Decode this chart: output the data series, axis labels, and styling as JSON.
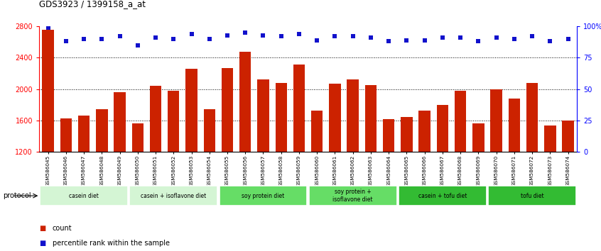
{
  "title": "GDS3923 / 1399158_a_at",
  "samples": [
    "GSM586045",
    "GSM586046",
    "GSM586047",
    "GSM586048",
    "GSM586049",
    "GSM586050",
    "GSM586051",
    "GSM586052",
    "GSM586053",
    "GSM586054",
    "GSM586055",
    "GSM586056",
    "GSM586057",
    "GSM586058",
    "GSM586059",
    "GSM586060",
    "GSM586061",
    "GSM586062",
    "GSM586063",
    "GSM586064",
    "GSM586065",
    "GSM586066",
    "GSM586067",
    "GSM586068",
    "GSM586069",
    "GSM586070",
    "GSM586071",
    "GSM586072",
    "GSM586073",
    "GSM586074"
  ],
  "counts": [
    2760,
    1630,
    1660,
    1740,
    1960,
    1560,
    2040,
    1980,
    2260,
    1740,
    2270,
    2480,
    2120,
    2080,
    2310,
    1730,
    2070,
    2120,
    2050,
    1620,
    1640,
    1730,
    1800,
    1980,
    1560,
    2000,
    1880,
    2080,
    1540,
    1600
  ],
  "percentile_ranks": [
    99,
    88,
    90,
    90,
    92,
    85,
    91,
    90,
    94,
    90,
    93,
    95,
    93,
    92,
    94,
    89,
    92,
    92,
    91,
    88,
    89,
    89,
    91,
    91,
    88,
    91,
    90,
    92,
    88,
    90
  ],
  "groups": [
    {
      "label": "casein diet",
      "start": 0,
      "end": 5,
      "color": "#d4f5d4"
    },
    {
      "label": "casein + isoflavone diet",
      "start": 5,
      "end": 10,
      "color": "#d4f5d4"
    },
    {
      "label": "soy protein diet",
      "start": 10,
      "end": 15,
      "color": "#66dd66"
    },
    {
      "label": "soy protein +\nisoflavone diet",
      "start": 15,
      "end": 20,
      "color": "#66dd66"
    },
    {
      "label": "casein + tofu diet",
      "start": 20,
      "end": 25,
      "color": "#33bb33"
    },
    {
      "label": "tofu diet",
      "start": 25,
      "end": 30,
      "color": "#33bb33"
    }
  ],
  "bar_color": "#cc2200",
  "dot_color": "#1111cc",
  "ylim_left": [
    1200,
    2800
  ],
  "ylim_right": [
    0,
    100
  ],
  "yticks_left": [
    1200,
    1600,
    2000,
    2400,
    2800
  ],
  "ytick_labels_left": [
    "1200",
    "1600",
    "2000",
    "2400",
    "2800"
  ],
  "yticks_right": [
    0,
    25,
    50,
    75,
    100
  ],
  "ytick_labels_right": [
    "0",
    "25",
    "50",
    "75",
    "100%"
  ],
  "grid_values": [
    1600,
    2000,
    2400
  ],
  "bg_color": "#ffffff",
  "fig_width": 8.46,
  "fig_height": 3.54
}
